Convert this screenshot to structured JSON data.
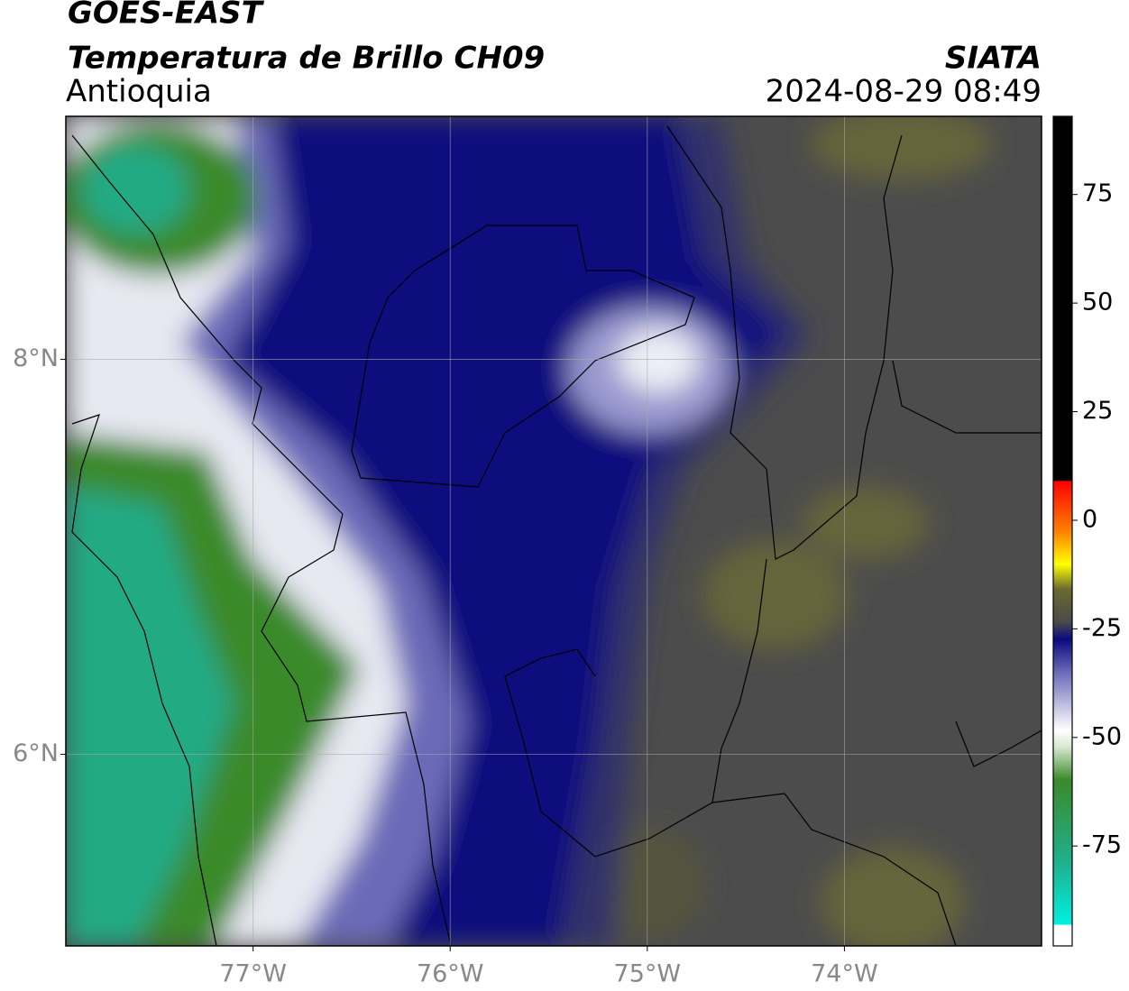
{
  "chart_data": {
    "type": "map",
    "title": "GOES-EAST",
    "subtitle": "Temperatura de Brillo CH09",
    "region": "Antioquia",
    "source": "SIATA",
    "timestamp": "2024-08-29 08:49",
    "xlim": [
      -77.95,
      -73.0
    ],
    "ylim": [
      5.03,
      9.23
    ],
    "xticks": [
      {
        "value": -77,
        "label": "77°W"
      },
      {
        "value": -76,
        "label": "76°W"
      },
      {
        "value": -75,
        "label": "75°W"
      },
      {
        "value": -74,
        "label": "74°W"
      }
    ],
    "yticks": [
      {
        "value": 6,
        "label": "6°N"
      },
      {
        "value": 8,
        "label": "8°N"
      }
    ],
    "grid": true,
    "colorbar": {
      "lim": [
        -98,
        93
      ],
      "ticks": [
        -75,
        -50,
        -25,
        0,
        25,
        50,
        75
      ]
    }
  }
}
